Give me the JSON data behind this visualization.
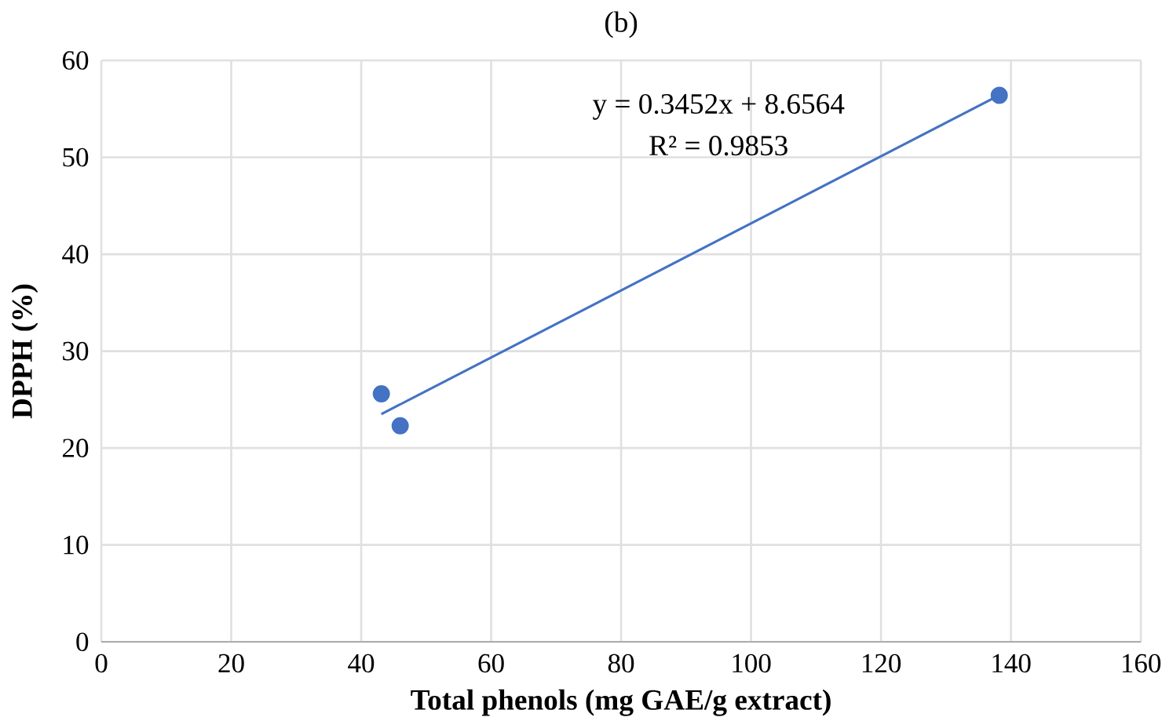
{
  "chart_data": {
    "type": "scatter",
    "title": "(b)",
    "xlabel": "Total phenols (mg GAE/g  extract)",
    "ylabel": "DPPH (%)",
    "annotations": [
      "y = 0.3452x + 8.6564",
      "R² = 0.9853"
    ],
    "series": [
      {
        "type": "scatter",
        "color": "#4472c4",
        "marker": "circle",
        "x": [
          43.1,
          46.0,
          138.2
        ],
        "values": [
          25.6,
          22.3,
          56.4
        ]
      },
      {
        "type": "line",
        "color": "#4472c4",
        "line_style": "solid",
        "x": [
          43.1,
          138.2
        ],
        "values": [
          23.5,
          56.4
        ]
      }
    ],
    "xlim": [
      0,
      160
    ],
    "xticks": [
      0,
      20,
      40,
      60,
      80,
      100,
      120,
      140,
      160
    ],
    "ylim": [
      0,
      60
    ],
    "yticks": [
      0,
      10,
      20,
      30,
      40,
      50,
      60
    ],
    "grid": true
  }
}
